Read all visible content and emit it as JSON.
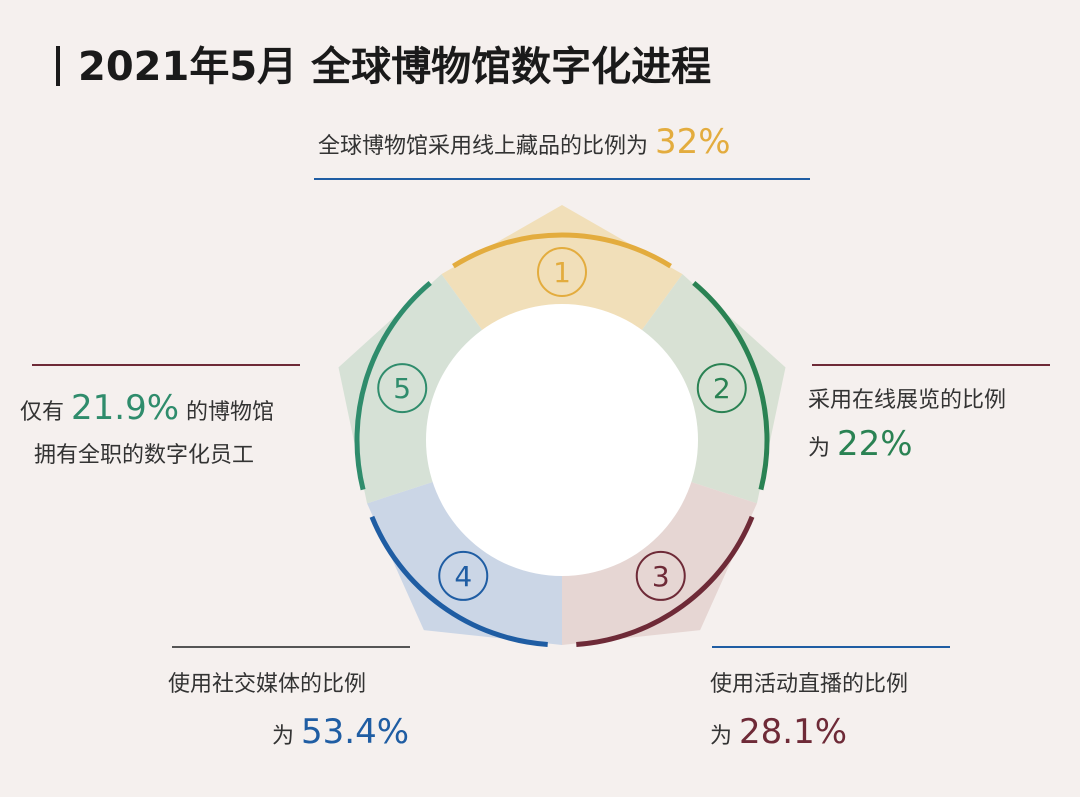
{
  "title": "2021年5月 全球博物馆数字化进程",
  "segments": [
    {
      "number": "1",
      "color": "#e3ac3e",
      "fill": "#f1dfb9",
      "pre": "全球博物馆采用线上藏品的比例为",
      "value": "32%"
    },
    {
      "number": "2",
      "color": "#2a8253",
      "fill": "#d8e1d4",
      "pre": "采用在线展览的比例",
      "pre2": "为",
      "value": "22%"
    },
    {
      "number": "3",
      "color": "#6e2a37",
      "fill": "#e6d6d3",
      "pre": "使用活动直播的比例",
      "pre2": "为",
      "value": "28.1%"
    },
    {
      "number": "4",
      "color": "#1f5da3",
      "fill": "#cbd6e6",
      "pre": "使用社交媒体的比例",
      "pre2": "为",
      "value": "53.4%"
    },
    {
      "number": "5",
      "color": "#2f8c6c",
      "fill": "#d6e1d6",
      "pre": "仅有",
      "value": "21.9%",
      "post": "的博物馆",
      "line2": "拥有全职的数字化员工"
    }
  ],
  "colors": {
    "background": "#f5f0ee",
    "line1": "#1f5da3",
    "line2": "#6e2a37",
    "line3": "#1f5da3",
    "line4": "#555555",
    "line5": "#6e2a37"
  }
}
